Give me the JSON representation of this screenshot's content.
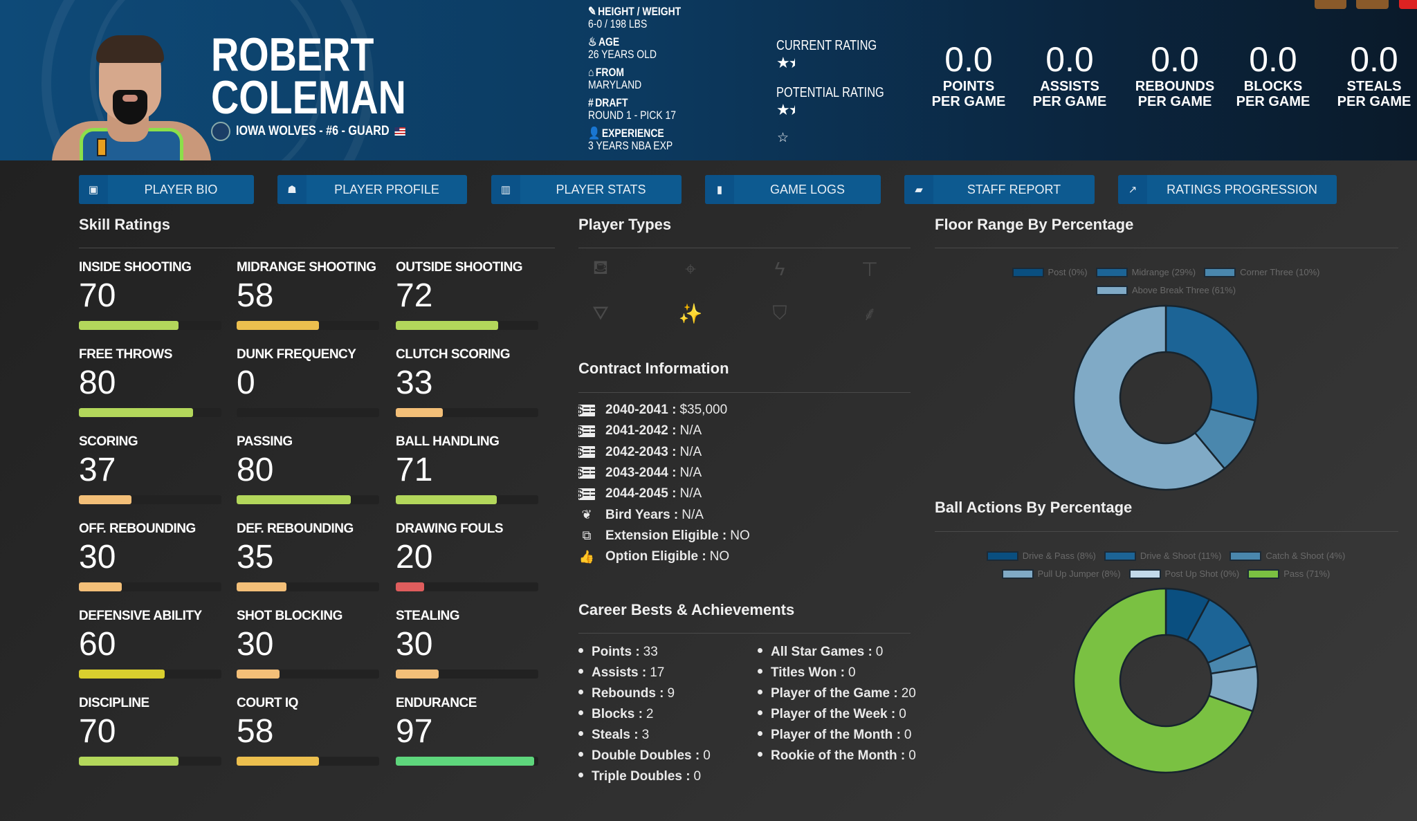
{
  "player": {
    "first": "ROBERT",
    "last": "COLEMAN",
    "team_line": "IOWA WOLVES - #6 - GUARD"
  },
  "info": [
    {
      "icon": "ruler-icon",
      "label": "HEIGHT / WEIGHT",
      "value": "6-0 / 198 LBS"
    },
    {
      "icon": "birthday-cake-icon",
      "label": "AGE",
      "value": "26 YEARS OLD"
    },
    {
      "icon": "building-icon",
      "label": "FROM",
      "value": "MARYLAND"
    },
    {
      "icon": "hashtag-icon",
      "label": "DRAFT",
      "value": "ROUND 1 - PICK 17"
    },
    {
      "icon": "user-clock-icon",
      "label": "EXPERIENCE",
      "value": "3 YEARS NBA EXP"
    }
  ],
  "ratings": {
    "current_label": "CURRENT RATING",
    "current_stars": 1.5,
    "potential_label": "POTENTIAL RATING",
    "potential_stars": 1.5
  },
  "stats": [
    {
      "value": "0.0",
      "l1": "POINTS",
      "l2": "PER GAME"
    },
    {
      "value": "0.0",
      "l1": "ASSISTS",
      "l2": "PER GAME"
    },
    {
      "value": "0.0",
      "l1": "REBOUNDS",
      "l2": "PER GAME"
    },
    {
      "value": "0.0",
      "l1": "BLOCKS",
      "l2": "PER GAME"
    },
    {
      "value": "0.0",
      "l1": "STEALS",
      "l2": "PER GAME"
    }
  ],
  "tabs": [
    {
      "label": "PLAYER BIO",
      "icon": "id-badge-icon"
    },
    {
      "label": "PLAYER PROFILE",
      "icon": "book-reader-icon"
    },
    {
      "label": "PLAYER STATS",
      "icon": "bar-chart-icon"
    },
    {
      "label": "GAME LOGS",
      "icon": "clipboard-icon"
    },
    {
      "label": "STAFF REPORT",
      "icon": "comment-icon"
    },
    {
      "label": "RATINGS PROGRESSION",
      "icon": "line-chart-icon"
    }
  ],
  "skills_title": "Skill Ratings",
  "skills": [
    {
      "label": "INSIDE SHOOTING",
      "value": 70,
      "color": "#b3d75b"
    },
    {
      "label": "MIDRANGE SHOOTING",
      "value": 58,
      "color": "#ecbf4e"
    },
    {
      "label": "OUTSIDE SHOOTING",
      "value": 72,
      "color": "#b3d75b"
    },
    {
      "label": "FREE THROWS",
      "value": 80,
      "color": "#b3d75b"
    },
    {
      "label": "DUNK FREQUENCY",
      "value": 0,
      "color": "#e06060"
    },
    {
      "label": "CLUTCH SCORING",
      "value": 33,
      "color": "#f3bf78"
    },
    {
      "label": "SCORING",
      "value": 37,
      "color": "#f3bf78"
    },
    {
      "label": "PASSING",
      "value": 80,
      "color": "#b3d75b"
    },
    {
      "label": "BALL HANDLING",
      "value": 71,
      "color": "#b3d75b"
    },
    {
      "label": "OFF. REBOUNDING",
      "value": 30,
      "color": "#f3bf78"
    },
    {
      "label": "DEF. REBOUNDING",
      "value": 35,
      "color": "#f3bf78"
    },
    {
      "label": "DRAWING FOULS",
      "value": 20,
      "color": "#df5d5d"
    },
    {
      "label": "DEFENSIVE ABILITY",
      "value": 60,
      "color": "#d9cf2e"
    },
    {
      "label": "SHOT BLOCKING",
      "value": 30,
      "color": "#f3bf78"
    },
    {
      "label": "STEALING",
      "value": 30,
      "color": "#f3bf78"
    },
    {
      "label": "DISCIPLINE",
      "value": 70,
      "color": "#b3d75b"
    },
    {
      "label": "COURT IQ",
      "value": 58,
      "color": "#ecbf4e"
    },
    {
      "label": "ENDURANCE",
      "value": 97,
      "color": "#5ed67c"
    }
  ],
  "player_types_title": "Player Types",
  "player_types": [
    {
      "icon": "fill-drip-icon",
      "active": false
    },
    {
      "icon": "crosshairs-icon",
      "active": false
    },
    {
      "icon": "bolt-icon",
      "active": false
    },
    {
      "icon": "paint-roller-icon",
      "active": false
    },
    {
      "icon": "drafting-compass-icon",
      "active": false
    },
    {
      "icon": "magic-wand-icon",
      "active": true
    },
    {
      "icon": "shield-icon",
      "active": false
    },
    {
      "icon": "broom-icon",
      "active": false
    }
  ],
  "active_color": "#6cc04a",
  "contract_title": "Contract Information",
  "contract": [
    {
      "icon": "money-check-icon",
      "label": "2040-2041 :",
      "value": "$35,000"
    },
    {
      "icon": "money-check-icon",
      "label": "2041-2042 :",
      "value": "N/A"
    },
    {
      "icon": "money-check-icon",
      "label": "2042-2043 :",
      "value": "N/A"
    },
    {
      "icon": "money-check-icon",
      "label": "2043-2044 :",
      "value": "N/A"
    },
    {
      "icon": "money-check-icon",
      "label": "2044-2045 :",
      "value": "N/A"
    },
    {
      "icon": "feather-icon",
      "label": "Bird Years :",
      "value": "N/A"
    },
    {
      "icon": "external-link-icon",
      "label": "Extension Eligible :",
      "value": "NO"
    },
    {
      "icon": "thumbs-up-icon",
      "label": "Option Eligible :",
      "value": "NO"
    }
  ],
  "career_title": "Career Bests & Achievements",
  "career_left": [
    {
      "label": "Points :",
      "value": "33"
    },
    {
      "label": "Assists :",
      "value": "17"
    },
    {
      "label": "Rebounds :",
      "value": "9"
    },
    {
      "label": "Blocks :",
      "value": "2"
    },
    {
      "label": "Steals :",
      "value": "3"
    },
    {
      "label": "Double Doubles :",
      "value": "0"
    },
    {
      "label": "Triple Doubles :",
      "value": "0"
    }
  ],
  "career_right": [
    {
      "label": "All Star Games :",
      "value": "0"
    },
    {
      "label": "Titles Won :",
      "value": "0"
    },
    {
      "label": "Player of the Game :",
      "value": "20"
    },
    {
      "label": "Player of the Week :",
      "value": "0"
    },
    {
      "label": "Player of the Month :",
      "value": "0"
    },
    {
      "label": "Rookie of the Month :",
      "value": "0"
    }
  ],
  "chart_data": [
    {
      "type": "pie",
      "title": "Floor Range By Percentage",
      "donut": true,
      "legend": "top",
      "slices": [
        {
          "name": "Post (0%)",
          "value": 0,
          "color": "#0a4f80"
        },
        {
          "name": "Midrange (29%)",
          "value": 29,
          "color": "#1c6496"
        },
        {
          "name": "Corner Three (10%)",
          "value": 10,
          "color": "#4a87ad"
        },
        {
          "name": "Above Break Three (61%)",
          "value": 61,
          "color": "#80aac6"
        }
      ]
    },
    {
      "type": "pie",
      "title": "Ball Actions By Percentage",
      "donut": true,
      "legend": "top",
      "slices": [
        {
          "name": "Drive & Pass (8%)",
          "value": 8,
          "color": "#0a4f80"
        },
        {
          "name": "Drive & Shoot (11%)",
          "value": 11,
          "color": "#1c6496"
        },
        {
          "name": "Catch & Shoot (4%)",
          "value": 4,
          "color": "#4a87ad"
        },
        {
          "name": "Pull Up Jumper (8%)",
          "value": 8,
          "color": "#80aac6"
        },
        {
          "name": "Post Up Shot (0%)",
          "value": 0,
          "color": "#c2d9ea"
        },
        {
          "name": "Pass (71%)",
          "value": 71,
          "color": "#7ac142"
        }
      ]
    }
  ]
}
